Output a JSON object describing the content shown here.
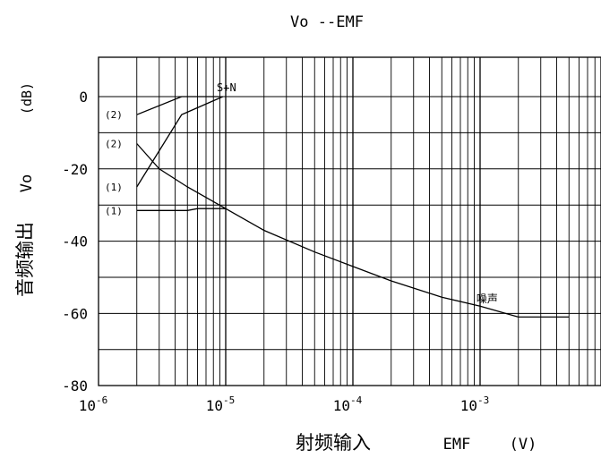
{
  "chart_data": {
    "type": "line",
    "title": "Vo --EMF",
    "ylabel_cn": "音频输出",
    "ylabel_symbol": "Vo",
    "ylabel_unit": "(dB)",
    "xlabel_cn": "射频输入",
    "xlabel_symbol": "EMF",
    "xlabel_unit": "(V)",
    "x_scale": "log",
    "xlim": [
      1e-06,
      0.005
    ],
    "ylim": [
      -80,
      12
    ],
    "grid": true,
    "x_ticks": [
      {
        "value": 1e-06,
        "base": "10",
        "exp": "-6"
      },
      {
        "value": 1e-05,
        "base": "10",
        "exp": "-5"
      },
      {
        "value": 0.0001,
        "base": "10",
        "exp": "-4"
      },
      {
        "value": 0.001,
        "base": "10",
        "exp": "-3"
      }
    ],
    "y_ticks": [
      {
        "value": 0,
        "label": "0"
      },
      {
        "value": -20,
        "label": "-20"
      },
      {
        "value": -40,
        "label": "-40"
      },
      {
        "value": -60,
        "label": "-60"
      },
      {
        "value": -80,
        "label": "-80"
      }
    ],
    "series": [
      {
        "name": "S+N",
        "points": [
          [
            2e-06,
            -5
          ],
          [
            4.5e-06,
            0
          ],
          [
            9e-06,
            0
          ]
        ]
      },
      {
        "name": "S+N",
        "points": [
          [
            2e-06,
            -25
          ],
          [
            4.5e-06,
            -5
          ],
          [
            9.5e-06,
            0
          ]
        ]
      },
      {
        "name": "噪声",
        "points": [
          [
            2e-06,
            -13
          ],
          [
            3e-06,
            -20
          ],
          [
            5e-06,
            -25
          ],
          [
            1e-05,
            -31
          ],
          [
            2e-05,
            -37
          ],
          [
            5e-05,
            -43
          ],
          [
            0.0001,
            -47
          ],
          [
            0.0002,
            -51
          ],
          [
            0.0005,
            -55.5
          ],
          [
            0.001,
            -58
          ],
          [
            0.002,
            -61
          ],
          [
            0.005,
            -61
          ]
        ]
      },
      {
        "name": "",
        "points": [
          [
            2e-06,
            -31.5
          ],
          [
            3e-06,
            -31.5
          ],
          [
            5e-06,
            -31.5
          ],
          [
            6e-06,
            -31
          ],
          [
            1e-05,
            -31
          ]
        ]
      }
    ],
    "annotations": [
      {
        "text": "S+N",
        "x": 1e-05,
        "y": 2.5
      },
      {
        "text": "(2)",
        "x": 1.6e-06,
        "y": -5
      },
      {
        "text": "(2)",
        "x": 1.6e-06,
        "y": -13
      },
      {
        "text": "(1)",
        "x": 1.6e-06,
        "y": -25
      },
      {
        "text": "(1)",
        "x": 1.6e-06,
        "y": -31.5
      },
      {
        "text": "噪声",
        "x": 0.0011,
        "y": -56
      }
    ]
  }
}
